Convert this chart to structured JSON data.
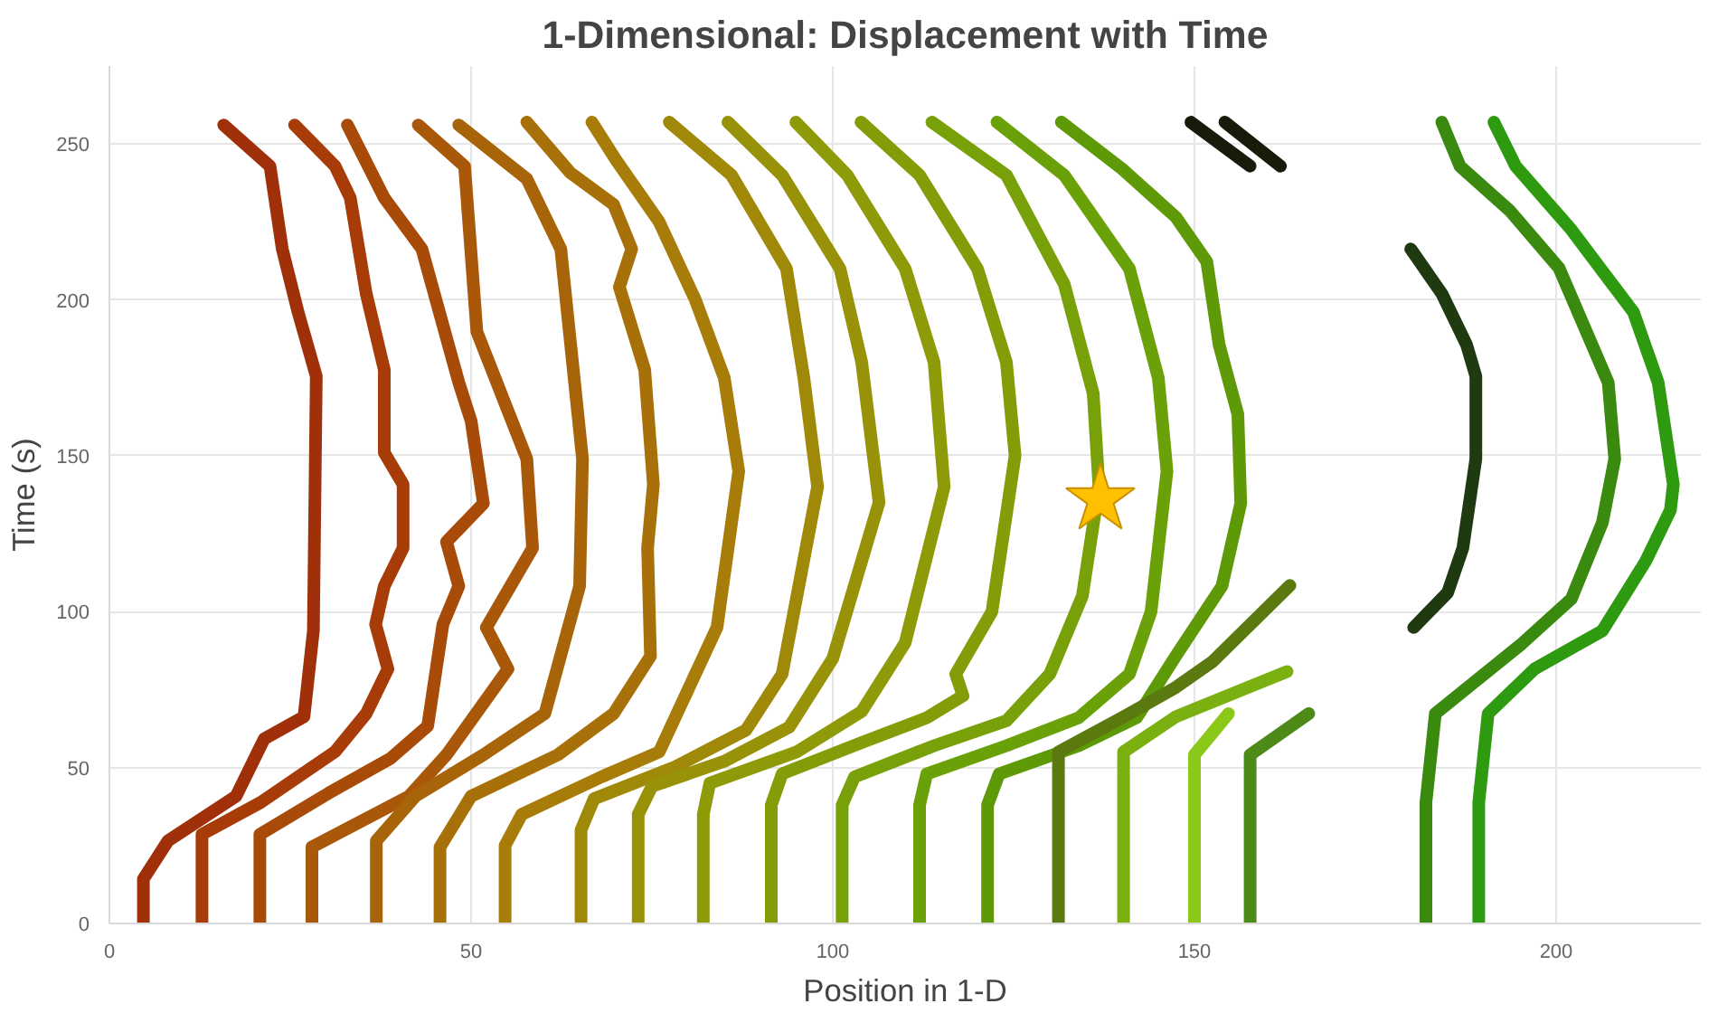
{
  "chart_data": {
    "type": "line",
    "title": "1-Dimensional: Displacement with Time",
    "xlabel": "Position in 1-D",
    "ylabel": "Time (s)",
    "xlim": [
      0,
      220
    ],
    "ylim": [
      0,
      275
    ],
    "xticks": [
      0,
      50,
      100,
      150,
      200
    ],
    "yticks": [
      0,
      50,
      100,
      150,
      200,
      250
    ],
    "grid": true,
    "marker": "none",
    "line_style": "solid",
    "series": [
      {
        "color": "#a0300a",
        "x": [
          4.7,
          4.7,
          8.1,
          17.5,
          21.4,
          26.9,
          28.2,
          28.6,
          26.1,
          23.9,
          22.2,
          15.8
        ],
        "values": [
          0,
          14.3,
          26.5,
          40.8,
          59.2,
          66.3,
          93.9,
          175.5,
          195.9,
          216.3,
          242.9,
          256.1
        ]
      },
      {
        "color": "#a83c08",
        "x": [
          12.8,
          12.8,
          20.9,
          31.2,
          35.5,
          38.5,
          36.8,
          38.0,
          40.6,
          40.6,
          38.0,
          38.0,
          35.5,
          33.3,
          31.2,
          25.6
        ],
        "values": [
          0,
          28.6,
          38.8,
          55.1,
          67.3,
          81.6,
          95.9,
          108.2,
          120.4,
          140.8,
          151,
          177.6,
          202,
          232.7,
          242.9,
          256.1
        ]
      },
      {
        "color": "#a84a08",
        "x": [
          20.8,
          20.8,
          30.3,
          38.9,
          44.0,
          46.1,
          48.3,
          46.6,
          51.7,
          50.0,
          48.3,
          43.2,
          38.0,
          32.9
        ],
        "values": [
          0,
          28.6,
          41.8,
          53.0,
          63.3,
          95.9,
          108.2,
          122.4,
          134.7,
          161.2,
          173.5,
          216.3,
          232.7,
          256.1
        ]
      },
      {
        "color": "#a85808",
        "x": [
          28.0,
          28.0,
          41.4,
          46.6,
          55.1,
          52.1,
          58.5,
          57.7,
          50.8,
          49.1,
          42.7
        ],
        "values": [
          0,
          24.5,
          40.8,
          54.1,
          81.6,
          94.9,
          120.4,
          149,
          189.8,
          242.9,
          256.1
        ]
      },
      {
        "color": "#a86408",
        "x": [
          36.9,
          36.9,
          42.3,
          51.7,
          60.2,
          65.0,
          65.4,
          62.4,
          57.7,
          48.3
        ],
        "values": [
          0,
          26.5,
          40.8,
          54.1,
          67.3,
          108.2,
          149,
          216.3,
          238.8,
          256.1
        ]
      },
      {
        "color": "#a87008",
        "x": [
          45.7,
          45.7,
          50.0,
          62.0,
          69.7,
          74.8,
          74.4,
          75.2,
          74.0,
          70.5,
          72.2,
          69.7,
          63.7,
          57.7
        ],
        "values": [
          0,
          24.5,
          40.8,
          54.1,
          67.3,
          85.7,
          120.4,
          140.8,
          177.6,
          204.1,
          216.3,
          230.6,
          240.8,
          257
        ]
      },
      {
        "color": "#a87c08",
        "x": [
          54.7,
          54.7,
          57,
          68,
          76,
          80,
          84,
          87,
          85,
          81,
          76,
          70,
          66.7
        ],
        "values": [
          0,
          25,
          35,
          47,
          55,
          75,
          95,
          145,
          175,
          200,
          225,
          245,
          257
        ]
      },
      {
        "color": "#a08808",
        "x": [
          65.2,
          65.2,
          67,
          78,
          88,
          93,
          97.9,
          96,
          93.6,
          86,
          77.4
        ],
        "values": [
          0,
          30,
          40,
          50,
          62,
          80,
          140,
          175,
          210,
          240,
          257
        ]
      },
      {
        "color": "#989208",
        "x": [
          73.1,
          73.1,
          75,
          85,
          94,
          100,
          106.4,
          104,
          101,
          93,
          85.5
        ],
        "values": [
          0,
          35,
          44,
          52,
          63,
          85,
          135,
          180,
          210,
          240,
          257
        ]
      },
      {
        "color": "#8e9a08",
        "x": [
          82.1,
          82.1,
          83,
          95,
          104,
          110,
          115.4,
          114,
          110,
          102,
          94.9
        ],
        "values": [
          0,
          35,
          45,
          55,
          68,
          90,
          140,
          180,
          210,
          240,
          257
        ]
      },
      {
        "color": "#849c08",
        "x": [
          91.5,
          91.5,
          93,
          104,
          113,
          118,
          117,
          122,
          125.2,
          124,
          120,
          112,
          103.9
        ],
        "values": [
          0,
          38,
          48,
          58,
          66,
          73,
          80,
          100,
          150,
          180,
          210,
          240,
          257
        ]
      },
      {
        "color": "#78a008",
        "x": [
          101.3,
          101.3,
          103,
          114,
          124,
          130,
          134.5,
          136.8,
          136,
          132,
          124,
          113.7
        ],
        "values": [
          0,
          38,
          47,
          57,
          65,
          80,
          105,
          140,
          170,
          205,
          240,
          257
        ]
      },
      {
        "color": "#6aa008",
        "x": [
          112,
          112,
          113,
          124,
          134,
          141,
          144,
          146.2,
          145,
          141,
          132,
          122.7
        ],
        "values": [
          0,
          38,
          48,
          57,
          66,
          80,
          100,
          145,
          175,
          210,
          240,
          257
        ]
      },
      {
        "color": "#5e9a08",
        "x": [
          121.4,
          121.4,
          123,
          134,
          142,
          147.4,
          153.8,
          156.4,
          156,
          153.4,
          151.7,
          147.4,
          140,
          131.6
        ],
        "values": [
          0,
          38,
          48,
          57,
          66,
          85.7,
          108.2,
          134.7,
          163.3,
          185.7,
          212.3,
          226.6,
          242,
          257
        ]
      },
      {
        "color": "#1a1a0a",
        "x": [
          149.5,
          157.7
        ],
        "values": [
          257,
          242.9
        ]
      },
      {
        "color": "#1a1a0a",
        "x": [
          154.2,
          161.9
        ],
        "values": [
          257,
          242.9
        ]
      },
      {
        "color": "#5a7a10",
        "x": [
          131.2,
          131.2,
          140,
          147.4,
          152.5,
          163.2
        ],
        "values": [
          0,
          55,
          66,
          75.7,
          84,
          108.4
        ]
      },
      {
        "color": "#7ab010",
        "x": [
          140.2,
          140.2,
          147.4,
          162.8
        ],
        "values": [
          0,
          55,
          66.3,
          80.8
        ]
      },
      {
        "color": "#8cc81a",
        "x": [
          150,
          150,
          154.7
        ],
        "values": [
          0,
          54.1,
          67.3
        ]
      },
      {
        "color": "#4e8a18",
        "x": [
          157.7,
          157.7,
          165.8
        ],
        "values": [
          0,
          54.1,
          67.3
        ]
      },
      {
        "color": "#1f3a10",
        "x": [
          179.9,
          184.2,
          187.6,
          188.9,
          188.9,
          187.1,
          185,
          180.3
        ],
        "values": [
          216.3,
          202,
          185.7,
          175.5,
          149,
          120.4,
          106.1,
          94.9
        ]
      },
      {
        "color": "#3a8a10",
        "x": [
          182,
          182,
          183.3,
          195.3,
          202.1,
          206.4,
          208.1,
          207.2,
          200.4,
          193.6,
          186.7,
          184.2
        ],
        "values": [
          0,
          38.8,
          67.3,
          89.8,
          104.1,
          128.6,
          149,
          173.5,
          210.2,
          228.6,
          242.9,
          257
        ]
      },
      {
        "color": "#2e9a10",
        "x": [
          189.3,
          189.3,
          190.6,
          197,
          206.4,
          212.4,
          215.8,
          216.2,
          214.1,
          210.7,
          202.1,
          194.4,
          191.4
        ],
        "values": [
          0,
          38.8,
          67.3,
          81.6,
          93.9,
          116.3,
          132.6,
          140.8,
          173.5,
          196,
          222.5,
          242.9,
          257
        ]
      },
      {
        "type": "scatter",
        "marker": "star",
        "color": "#ffc000",
        "x": [
          137
        ],
        "values": [
          136
        ]
      }
    ]
  }
}
